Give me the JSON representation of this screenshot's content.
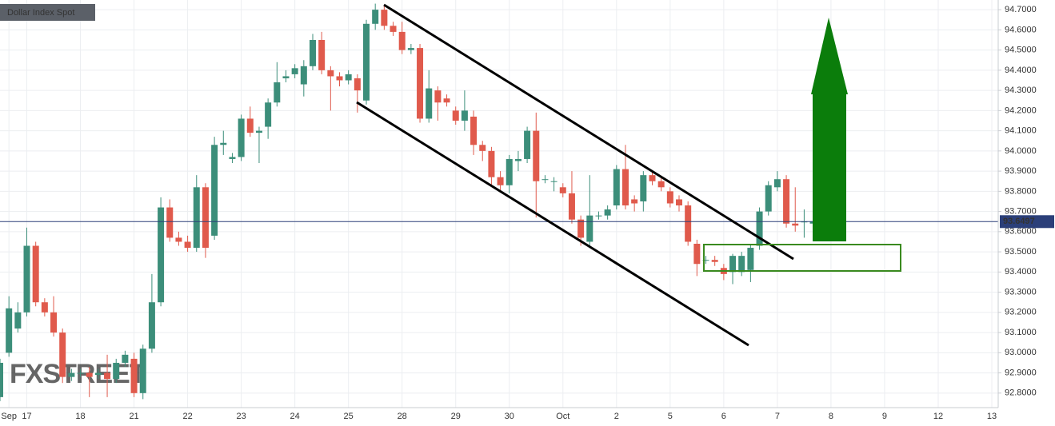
{
  "chart_data": {
    "type": "candlestick",
    "title": "Dollar Index Spot",
    "watermark": "FXSTREET",
    "categories": [
      null,
      "Sep",
      null,
      "17",
      null,
      null,
      null,
      null,
      null,
      "18",
      null,
      null,
      null,
      null,
      null,
      "21",
      null,
      null,
      null,
      null,
      null,
      "22",
      null,
      null,
      null,
      null,
      null,
      "23",
      null,
      null,
      null,
      null,
      null,
      "24",
      null,
      null,
      null,
      null,
      null,
      "25",
      null,
      null,
      null,
      null,
      null,
      "28",
      null,
      null,
      null,
      null,
      null,
      "29",
      null,
      null,
      null,
      null,
      null,
      "30",
      null,
      null,
      null,
      null,
      null,
      "Oct",
      null,
      null,
      null,
      null,
      null,
      "2",
      null,
      null,
      null,
      null,
      null,
      "5",
      null,
      null,
      null,
      null,
      null,
      "6",
      null,
      null,
      null,
      null,
      null,
      "7",
      null,
      null,
      null,
      null,
      null,
      "8",
      null,
      null,
      null,
      null,
      null,
      "9",
      null,
      null,
      null,
      null,
      null,
      "12",
      null,
      null,
      null,
      null,
      null,
      "13"
    ],
    "open": [
      92.78,
      93.0,
      93.12,
      93.2,
      93.53,
      93.25,
      93.2,
      93.1,
      92.88,
      92.9,
      92.9,
      92.89,
      92.9,
      92.87,
      92.95,
      92.97,
      92.8,
      93.02,
      93.25,
      93.72,
      93.57,
      93.55,
      93.52,
      93.82,
      93.58,
      94.03,
      93.96,
      93.97,
      94.16,
      94.09,
      94.12,
      94.24,
      94.36,
      94.38,
      94.33,
      94.42,
      94.55,
      94.4,
      94.37,
      94.35,
      94.36,
      94.25,
      94.63,
      94.7,
      94.62,
      94.59,
      94.5,
      94.51,
      94.16,
      94.3,
      94.26,
      94.2,
      94.15,
      94.17,
      94.03,
      94.0,
      93.87,
      93.83,
      93.95,
      93.96,
      94.1,
      93.86,
      93.85,
      93.82,
      93.79,
      93.66,
      93.55,
      93.68,
      93.68,
      93.73,
      93.91,
      93.76,
      93.75,
      93.88,
      93.85,
      93.8,
      93.76,
      93.73,
      93.54,
      93.46,
      93.46,
      93.42,
      93.4,
      93.4,
      93.41,
      93.53,
      93.7,
      93.82,
      93.86,
      93.64,
      93.65,
      93.64,
      null,
      null,
      null,
      null,
      null,
      null,
      null,
      null,
      null,
      null,
      null,
      null,
      null,
      null,
      null,
      null,
      null,
      null,
      null,
      null
    ],
    "high": [
      92.97,
      93.28,
      93.25,
      93.62,
      93.55,
      93.27,
      93.28,
      93.12,
      92.92,
      92.92,
      92.93,
      92.92,
      92.99,
      92.97,
      93.01,
      93.0,
      93.04,
      93.39,
      93.77,
      93.76,
      93.6,
      93.58,
      93.88,
      93.84,
      94.07,
      94.1,
      93.99,
      94.18,
      94.22,
      94.12,
      94.26,
      94.44,
      94.4,
      94.43,
      94.45,
      94.58,
      94.59,
      94.42,
      94.39,
      94.4,
      94.38,
      94.65,
      94.73,
      94.72,
      94.64,
      94.64,
      94.53,
      94.53,
      94.4,
      94.32,
      94.28,
      94.22,
      94.3,
      94.2,
      94.05,
      94.02,
      93.9,
      93.98,
      94.0,
      94.12,
      94.19,
      93.88,
      93.87,
      93.84,
      93.9,
      93.68,
      93.88,
      93.7,
      93.73,
      93.93,
      94.03,
      93.78,
      93.9,
      93.9,
      93.87,
      93.82,
      93.78,
      93.75,
      93.56,
      93.48,
      93.48,
      93.44,
      93.49,
      93.5,
      93.54,
      93.72,
      93.85,
      93.9,
      93.88,
      93.82,
      93.71,
      93.67,
      null,
      null,
      null,
      null,
      null,
      null,
      null,
      null,
      null,
      null,
      null,
      null,
      null,
      null,
      null,
      null,
      null,
      null,
      null,
      null
    ],
    "low": [
      92.76,
      92.98,
      93.1,
      93.18,
      93.23,
      93.18,
      93.08,
      92.85,
      92.86,
      92.88,
      92.78,
      92.87,
      92.78,
      92.85,
      92.93,
      92.78,
      92.77,
      93.0,
      93.23,
      93.55,
      93.53,
      93.5,
      93.5,
      93.47,
      93.56,
      93.98,
      93.94,
      93.95,
      94.07,
      93.94,
      94.06,
      94.22,
      94.34,
      94.36,
      94.27,
      94.4,
      94.38,
      94.2,
      94.32,
      94.33,
      94.19,
      94.23,
      94.6,
      94.6,
      94.57,
      94.48,
      94.48,
      94.14,
      94.14,
      94.15,
      94.22,
      94.13,
      94.1,
      93.98,
      93.95,
      93.83,
      93.8,
      93.79,
      93.9,
      93.94,
      93.67,
      93.84,
      93.8,
      93.77,
      93.64,
      93.53,
      93.53,
      93.66,
      93.66,
      93.71,
      93.71,
      93.7,
      93.7,
      93.83,
      93.8,
      93.72,
      93.7,
      93.53,
      93.38,
      93.44,
      93.43,
      93.36,
      93.34,
      93.38,
      93.35,
      93.51,
      93.68,
      93.8,
      93.62,
      93.6,
      93.57,
      93.58,
      null,
      null,
      null,
      null,
      null,
      null,
      null,
      null,
      null,
      null,
      null,
      null,
      null,
      null,
      null,
      null,
      null,
      null,
      null,
      null
    ],
    "close": [
      92.95,
      93.22,
      93.2,
      93.53,
      93.25,
      93.2,
      93.1,
      92.88,
      92.9,
      92.9,
      92.88,
      92.9,
      92.87,
      92.95,
      92.99,
      92.8,
      93.02,
      93.25,
      93.72,
      93.57,
      93.55,
      93.52,
      93.82,
      93.52,
      94.03,
      94.04,
      93.97,
      94.16,
      94.09,
      94.1,
      94.24,
      94.34,
      94.37,
      94.41,
      94.42,
      94.55,
      94.4,
      94.37,
      94.35,
      94.38,
      94.3,
      94.63,
      94.7,
      94.62,
      94.59,
      94.5,
      94.51,
      94.16,
      94.31,
      94.24,
      94.24,
      94.15,
      94.2,
      94.03,
      94.0,
      93.87,
      93.83,
      93.96,
      93.96,
      94.1,
      93.85,
      93.86,
      93.85,
      93.79,
      93.66,
      93.57,
      93.68,
      93.68,
      93.71,
      93.91,
      93.73,
      93.74,
      93.88,
      93.85,
      93.82,
      93.74,
      93.73,
      93.55,
      93.44,
      93.46,
      93.45,
      93.39,
      93.48,
      93.48,
      93.52,
      93.7,
      93.83,
      93.86,
      93.64,
      93.63,
      93.65,
      93.65,
      null,
      null,
      null,
      null,
      null,
      null,
      null,
      null,
      null,
      null,
      null,
      null,
      null,
      null,
      null,
      null,
      null,
      null,
      null,
      null
    ],
    "up_color": "#3c8e7a",
    "down_color": "#e05a4c",
    "current_price": 93.6497,
    "ylim": [
      92.728,
      94.748
    ],
    "yticks": [
      {
        "value": 92.8,
        "label": "92.8000"
      },
      {
        "value": 92.9,
        "label": "92.9000"
      },
      {
        "value": 93.0,
        "label": "93.0000"
      },
      {
        "value": 93.1,
        "label": "93.1000"
      },
      {
        "value": 93.2,
        "label": "93.2000"
      },
      {
        "value": 93.3,
        "label": "93.3000"
      },
      {
        "value": 93.4,
        "label": "93.4000"
      },
      {
        "value": 93.5,
        "label": "93.5000"
      },
      {
        "value": 93.6,
        "label": "93.6000"
      },
      {
        "value": 93.7,
        "label": "93.7000"
      },
      {
        "value": 93.8,
        "label": "93.8000"
      },
      {
        "value": 93.9,
        "label": "93.9000"
      },
      {
        "value": 94.0,
        "label": "94.0000"
      },
      {
        "value": 94.1,
        "label": "94.1000"
      },
      {
        "value": 94.2,
        "label": "94.2000"
      },
      {
        "value": 94.3,
        "label": "94.3000"
      },
      {
        "value": 94.4,
        "label": "94.4000"
      },
      {
        "value": 94.5,
        "label": "94.5000"
      },
      {
        "value": 94.6,
        "label": "94.6000"
      },
      {
        "value": 94.7,
        "label": "94.7000"
      }
    ],
    "grid": true
  }
}
